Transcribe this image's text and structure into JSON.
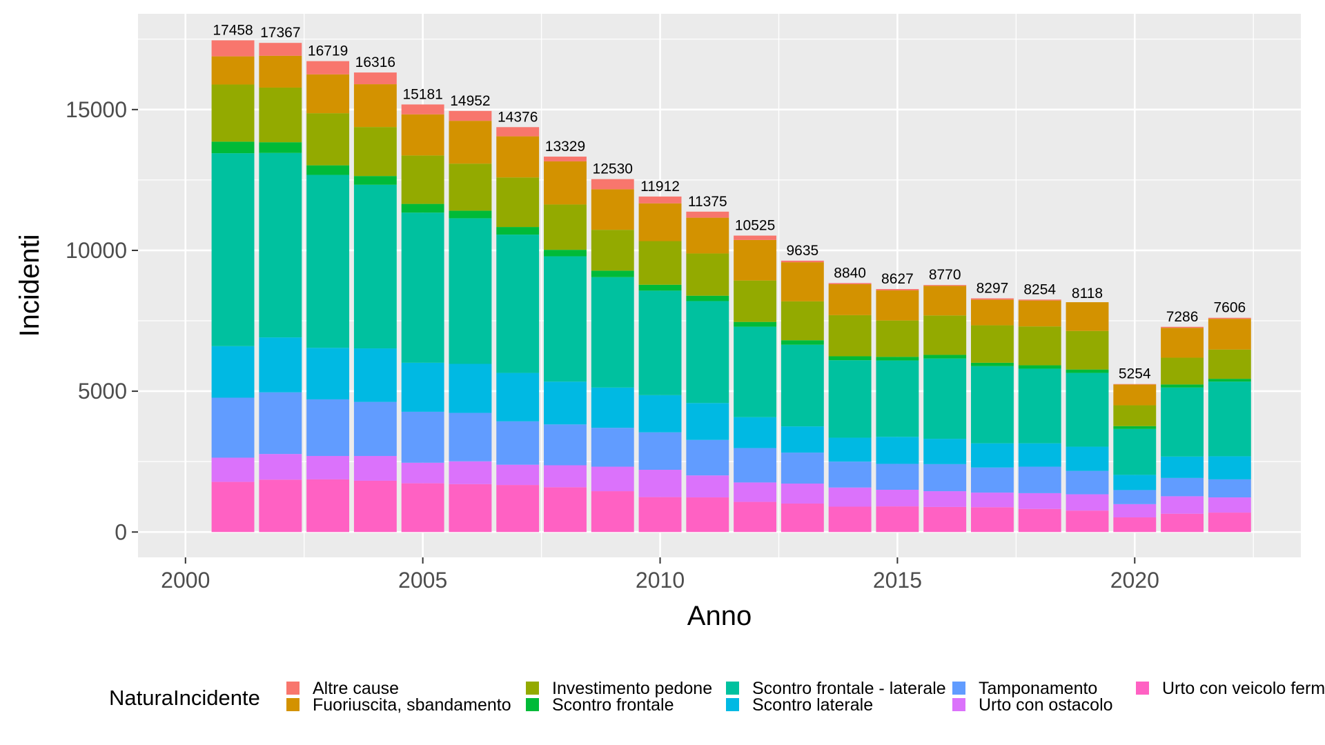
{
  "chart_data": {
    "type": "bar",
    "stacked": true,
    "xlabel": "Anno",
    "ylabel": "Incidenti",
    "xlim": [
      1999,
      2023.5
    ],
    "ylim": [
      -900,
      18400
    ],
    "x_ticks": [
      2000,
      2005,
      2010,
      2015,
      2020
    ],
    "y_ticks": [
      0,
      5000,
      10000,
      15000
    ],
    "grid": true,
    "legend_title": "NaturaIncidente",
    "legend_position": "bottom",
    "categories": [
      2001,
      2002,
      2003,
      2004,
      2005,
      2006,
      2007,
      2008,
      2009,
      2010,
      2011,
      2012,
      2013,
      2014,
      2015,
      2016,
      2017,
      2018,
      2019,
      2020,
      2021,
      2022
    ],
    "totals": [
      17458,
      17367,
      16719,
      16316,
      15181,
      14952,
      14376,
      13329,
      12530,
      11912,
      11375,
      10525,
      9635,
      8840,
      8627,
      8770,
      8297,
      8254,
      8118,
      5254,
      7286,
      7606
    ],
    "series": [
      {
        "name": "Urto con veicolo fermo",
        "color": "#FF61C3",
        "values": [
          1780,
          1860,
          1870,
          1820,
          1730,
          1700,
          1670,
          1590,
          1450,
          1240,
          1230,
          1070,
          1010,
          900,
          910,
          890,
          880,
          820,
          760,
          520,
          650,
          690
        ]
      },
      {
        "name": "Urto con ostacolo",
        "color": "#DB72FB",
        "values": [
          860,
          910,
          830,
          880,
          730,
          810,
          720,
          780,
          870,
          970,
          780,
          690,
          710,
          680,
          590,
          560,
          520,
          560,
          580,
          470,
          620,
          540
        ]
      },
      {
        "name": "Tamponamento",
        "color": "#619CFF",
        "values": [
          2130,
          2190,
          2010,
          1920,
          1810,
          1720,
          1540,
          1450,
          1380,
          1330,
          1260,
          1220,
          1100,
          920,
          920,
          960,
          890,
          940,
          830,
          500,
          650,
          640
        ]
      },
      {
        "name": "Scontro laterale",
        "color": "#00B9E3",
        "values": [
          1830,
          1950,
          1830,
          1900,
          1740,
          1740,
          1720,
          1520,
          1430,
          1320,
          1310,
          1100,
          930,
          850,
          960,
          900,
          860,
          830,
          860,
          540,
          760,
          820
        ]
      },
      {
        "name": "Scontro frontale - laterale",
        "color": "#00C19F",
        "values": [
          6850,
          6550,
          6140,
          5810,
          5330,
          5170,
          4910,
          4450,
          3920,
          3710,
          3620,
          3210,
          2900,
          2750,
          2710,
          2850,
          2740,
          2650,
          2620,
          1630,
          2450,
          2650
        ]
      },
      {
        "name": "Scontro frontale",
        "color": "#00BA38",
        "values": [
          410,
          380,
          340,
          310,
          310,
          270,
          270,
          230,
          230,
          210,
          190,
          170,
          160,
          140,
          130,
          130,
          120,
          120,
          120,
          100,
          110,
          100
        ]
      },
      {
        "name": "Investimento pedone",
        "color": "#93AA00",
        "values": [
          2030,
          1940,
          1850,
          1740,
          1720,
          1670,
          1760,
          1610,
          1450,
          1550,
          1500,
          1470,
          1380,
          1460,
          1290,
          1400,
          1330,
          1380,
          1370,
          740,
          950,
          1040
        ]
      },
      {
        "name": "Fuoriuscita, sbandamento",
        "color": "#D39200",
        "values": [
          1000,
          1130,
          1380,
          1520,
          1460,
          1520,
          1460,
          1530,
          1440,
          1340,
          1270,
          1440,
          1390,
          1100,
          1070,
          1050,
          910,
          920,
          1020,
          740,
          1060,
          1090
        ]
      },
      {
        "name": "Altre cause",
        "color": "#F8766D",
        "values": [
          568,
          457,
          469,
          416,
          351,
          352,
          326,
          169,
          360,
          242,
          215,
          155,
          55,
          40,
          47,
          30,
          47,
          34,
          18,
          14,
          36,
          36
        ]
      }
    ],
    "legend_order": [
      "Altre cause",
      "Fuoriuscita, sbandamento",
      "Investimento pedone",
      "Scontro frontale",
      "Scontro frontale - laterale",
      "Scontro laterale",
      "Tamponamento",
      "Urto con ostacolo",
      "Urto con veicolo fermo"
    ],
    "colors": {
      "panel_background": "#EBEBEB",
      "grid": "#FFFFFF",
      "tick_text": "#4D4D4D",
      "tick_mark": "#333333"
    }
  }
}
